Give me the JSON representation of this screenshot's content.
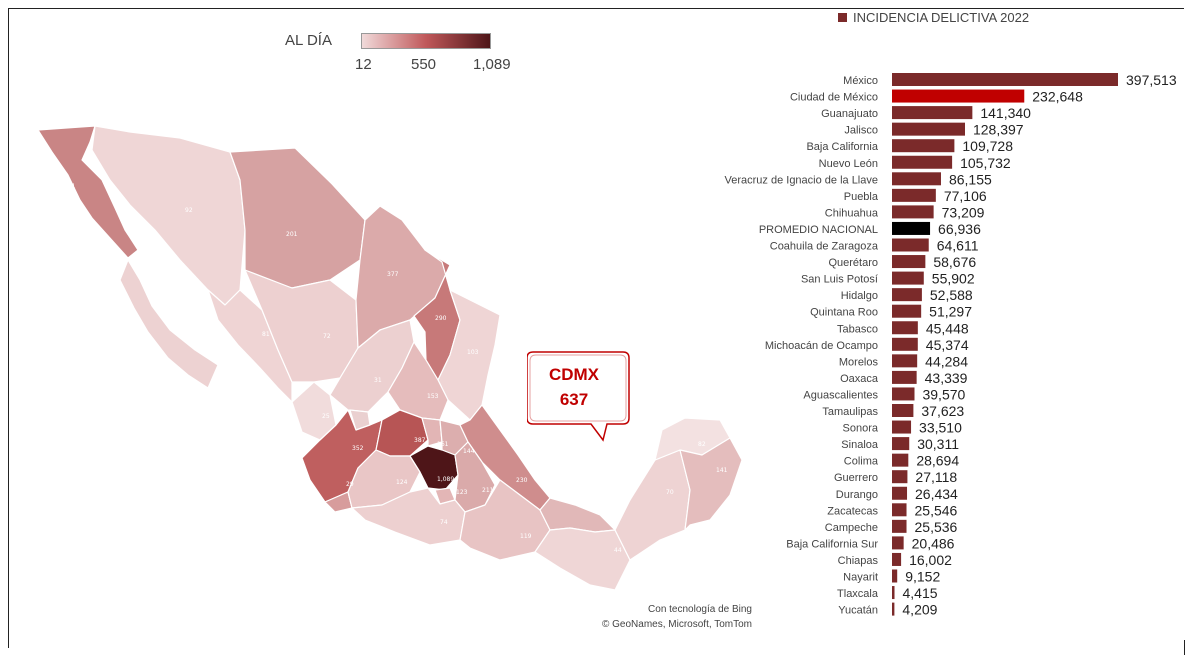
{
  "legend": {
    "title": "AL DÍA",
    "min_label": "12",
    "mid_label": "550",
    "max_label": "1,089"
  },
  "map": {
    "callout": {
      "line1": "CDMX",
      "line2": "637"
    },
    "attribution": {
      "line1": "Con tecnología de Bing",
      "line2": "© GeoNames, Microsoft, TomTom"
    },
    "region_values": [
      "301",
      "92",
      "201",
      "377",
      "290",
      "72",
      "81",
      "58",
      "31",
      "103",
      "153",
      "25",
      "108",
      "387",
      "161",
      "352",
      "144",
      "1,089",
      "123",
      "211",
      "230",
      "124",
      "74",
      "119",
      "44",
      "29",
      "70",
      "82",
      "141",
      "125"
    ]
  },
  "chart_data": {
    "type": "bar",
    "orientation": "horizontal",
    "title": "INCIDENCIA DELICTIVA 2022",
    "legend_position": "top",
    "colors": {
      "default": "#7b2a2a",
      "highlight": "#c00000",
      "average": "#000000"
    },
    "categories": [
      "México",
      "Ciudad de México",
      "Guanajuato",
      "Jalisco",
      "Baja California",
      "Nuevo León",
      "Veracruz de Ignacio de la Llave",
      "Puebla",
      "Chihuahua",
      "PROMEDIO NACIONAL",
      "Coahuila de Zaragoza",
      "Querétaro",
      "San Luis Potosí",
      "Hidalgo",
      "Quintana Roo",
      "Tabasco",
      "Michoacán de Ocampo",
      "Morelos",
      "Oaxaca",
      "Aguascalientes",
      "Tamaulipas",
      "Sonora",
      "Sinaloa",
      "Colima",
      "Guerrero",
      "Durango",
      "Zacatecas",
      "Campeche",
      "Baja California Sur",
      "Chiapas",
      "Nayarit",
      "Tlaxcala",
      "Yucatán"
    ],
    "values": [
      397513,
      232648,
      141340,
      128397,
      109728,
      105732,
      86155,
      77106,
      73209,
      66936,
      64611,
      58676,
      55902,
      52588,
      51297,
      45448,
      45374,
      44284,
      43339,
      39570,
      37623,
      33510,
      30311,
      28694,
      27118,
      26434,
      25546,
      25536,
      20486,
      16002,
      9152,
      4415,
      4209
    ],
    "value_labels": [
      "397,513",
      "232,648",
      "141,340",
      "128,397",
      "109,728",
      "105,732",
      "86,155",
      "77,106",
      "73,209",
      "66,936",
      "64,611",
      "58,676",
      "55,902",
      "52,588",
      "51,297",
      "45,448",
      "45,374",
      "44,284",
      "43,339",
      "39,570",
      "37,623",
      "33,510",
      "30,311",
      "28,694",
      "27,118",
      "26,434",
      "25,546",
      "25,536",
      "20,486",
      "16,002",
      "9,152",
      "4,415",
      "4,209"
    ],
    "highlight_index": 1,
    "average_index": 9
  }
}
